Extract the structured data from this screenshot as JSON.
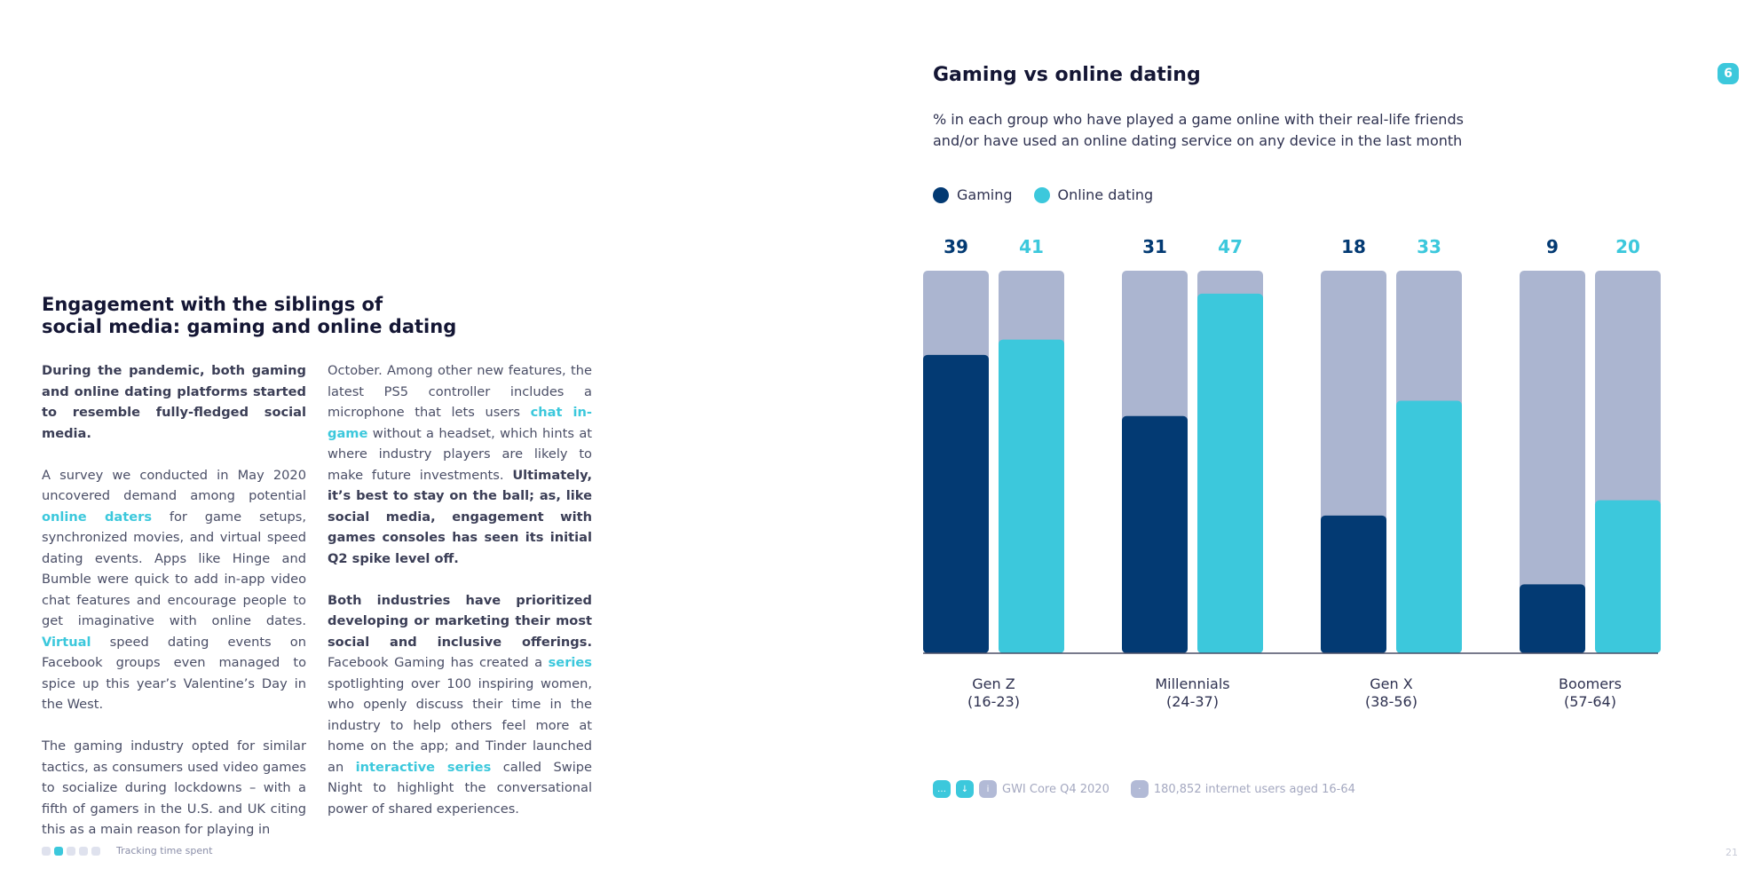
{
  "left": {
    "heading": "Engagement with the siblings of\nsocial media: gaming and online dating",
    "col1": {
      "p1": "During the pandemic, both gaming and online dating platforms started to resemble fully-fledged social media.",
      "p2_a": "A survey we conducted in May 2020 uncovered demand among potential ",
      "p2_link": "online daters",
      "p2_b": " for game setups, synchronized movies, and virtual speed dating events. Apps like Hinge and Bumble were quick to add in-app video chat features and encourage people to get imaginative with online dates. ",
      "p2_link2": "Virtual",
      "p2_c": " speed dating events on Facebook groups even managed to spice up this year’s Valentine’s Day in the West.",
      "p3": "The gaming industry opted for similar tactics, as consumers used video games to socialize during lockdowns – with a fifth of gamers in the U.S. and UK citing this as a main reason for playing in"
    },
    "col2": {
      "p1_a": "October. Among other new features, the latest PS5 controller includes a microphone that lets users ",
      "p1_link": "chat in-game",
      "p1_b": " without a headset, which hints at where industry players are likely to make future investments. ",
      "p1_bold": "Ultimately, it’s best to stay on the ball; as, like social media, engagement with games consoles has seen its initial Q2 spike level off.",
      "p2_bold": "Both industries have prioritized developing or marketing their most social and inclusive offerings.",
      "p2_a": " Facebook Gaming has created a ",
      "p2_link": "series",
      "p2_b": " spotlighting over 100 inspiring women, who openly discuss their time in the industry to help others feel more at home on the app; and Tinder launched an ",
      "p2_link2": "interactive series",
      "p2_c": " called Swipe Night to highlight the conversational power of shared experiences."
    }
  },
  "footer": {
    "label": "Tracking time spent",
    "page": "21"
  },
  "badge": "6",
  "source": {
    "survey": "GWI Core Q4 2020",
    "base": "180,852 internet users aged 16-64"
  },
  "colors": {
    "gaming": "#033a73",
    "dating": "#3cc8dc",
    "track": "#abb5d0",
    "axis": "#4a4e66"
  },
  "chart_data": {
    "type": "bar",
    "title": "Gaming vs online dating",
    "subtitle": "% in each group who have played a game online with their real-life friends and/or have used an online dating service on any device in the last month",
    "categories": [
      "Gen Z\n(16-23)",
      "Millennials\n(24-37)",
      "Gen X\n(38-56)",
      "Boomers\n(57-64)"
    ],
    "series": [
      {
        "name": "Gaming",
        "values": [
          39,
          31,
          18,
          9
        ]
      },
      {
        "name": "Online dating",
        "values": [
          41,
          47,
          33,
          20
        ]
      }
    ],
    "ylim": [
      0,
      50
    ],
    "legend": "top-left",
    "grid": false
  }
}
